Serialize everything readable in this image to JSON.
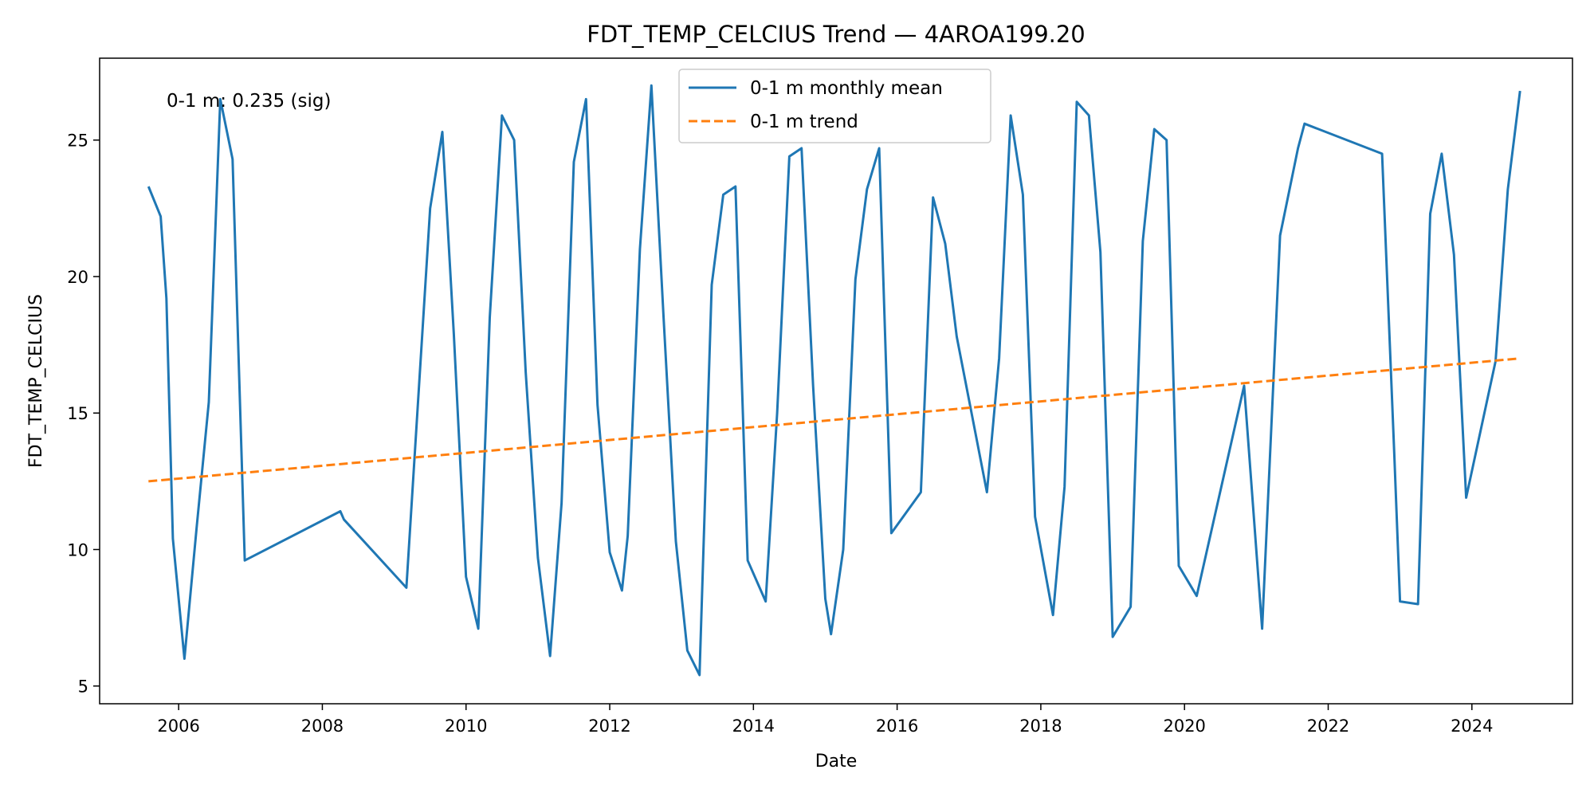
{
  "chart_data": {
    "type": "line",
    "title": "FDT_TEMP_CELCIUS Trend — 4AROA199.20",
    "xlabel": "Date",
    "ylabel": "FDT_TEMP_CELCIUS",
    "xlim": [
      2004.9,
      2025.4
    ],
    "ylim": [
      4.35,
      28.0
    ],
    "x_ticks": [
      2006,
      2008,
      2010,
      2012,
      2014,
      2016,
      2018,
      2020,
      2022,
      2024
    ],
    "y_ticks": [
      5,
      10,
      15,
      20,
      25
    ],
    "grid": false,
    "legend_position": "top-center",
    "annotation": "0-1 m: 0.235 (sig)",
    "series": [
      {
        "name": "0-1 m monthly mean",
        "style": "solid",
        "color": "#1f77b4",
        "x": [
          2005.58,
          2005.75,
          2005.83,
          2005.92,
          2006.08,
          2006.25,
          2006.42,
          2006.58,
          2006.75,
          2006.92,
          2008.25,
          2008.3,
          2009.17,
          2009.5,
          2009.67,
          2009.83,
          2010.0,
          2010.17,
          2010.33,
          2010.5,
          2010.67,
          2010.83,
          2011.0,
          2011.17,
          2011.33,
          2011.5,
          2011.67,
          2011.83,
          2012.0,
          2012.17,
          2012.25,
          2012.42,
          2012.58,
          2012.75,
          2012.92,
          2013.08,
          2013.25,
          2013.42,
          2013.58,
          2013.75,
          2013.92,
          2014.17,
          2014.33,
          2014.5,
          2014.67,
          2014.83,
          2015.0,
          2015.08,
          2015.25,
          2015.42,
          2015.58,
          2015.75,
          2015.92,
          2016.33,
          2016.5,
          2016.67,
          2016.83,
          2017.25,
          2017.42,
          2017.58,
          2017.75,
          2017.92,
          2018.17,
          2018.33,
          2018.5,
          2018.67,
          2018.83,
          2019.0,
          2019.25,
          2019.42,
          2019.58,
          2019.75,
          2019.92,
          2020.17,
          2020.83,
          2021.08,
          2021.33,
          2021.58,
          2021.67,
          2022.75,
          2022.92,
          2023.0,
          2023.25,
          2023.42,
          2023.58,
          2023.75,
          2023.92,
          2024.33,
          2024.5,
          2024.67
        ],
        "values": [
          23.3,
          22.2,
          19.2,
          10.4,
          6.0,
          10.8,
          15.4,
          26.5,
          24.3,
          9.6,
          11.4,
          11.1,
          8.6,
          22.5,
          25.3,
          17.9,
          9.0,
          7.1,
          18.5,
          25.9,
          25.0,
          16.5,
          9.7,
          6.1,
          11.7,
          24.2,
          26.5,
          15.3,
          9.9,
          8.5,
          10.5,
          21.0,
          27.0,
          18.5,
          10.3,
          6.3,
          5.4,
          19.7,
          23.0,
          23.3,
          9.6,
          8.1,
          15.0,
          24.4,
          24.7,
          16.0,
          8.2,
          6.9,
          10.0,
          19.9,
          23.2,
          24.7,
          10.6,
          12.1,
          22.9,
          21.2,
          17.8,
          12.1,
          17.0,
          25.9,
          23.0,
          11.2,
          7.6,
          12.3,
          26.4,
          25.9,
          20.9,
          6.8,
          7.9,
          21.3,
          25.4,
          25.0,
          9.4,
          8.3,
          16.0,
          7.1,
          21.5,
          24.7,
          25.6,
          24.5,
          13.5,
          8.1,
          8.0,
          22.3,
          24.5,
          20.8,
          11.9,
          16.9,
          23.2,
          26.8
        ]
      },
      {
        "name": "0-1 m trend",
        "style": "dashed",
        "color": "#ff7f0e",
        "x": [
          2005.58,
          2024.67
        ],
        "values": [
          12.5,
          17.0
        ]
      }
    ]
  }
}
